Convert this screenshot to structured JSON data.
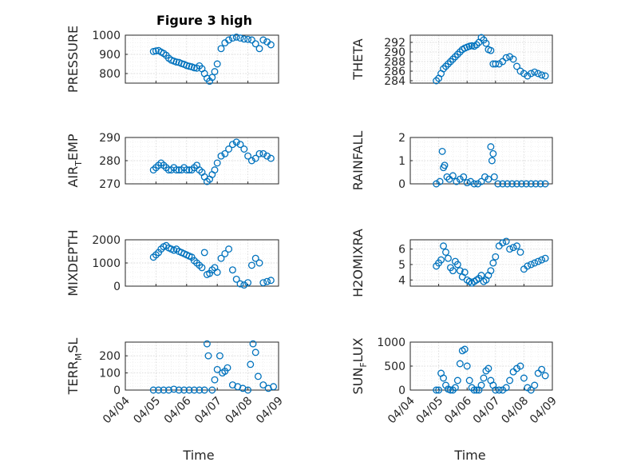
{
  "figure_title": "Figure 3 high",
  "xlabel": "Time",
  "x_ticks": [
    "04/04",
    "04/05",
    "04/06",
    "04/07",
    "04/08",
    "04/09"
  ],
  "marker_color": "#0072BD",
  "chart_data": [
    {
      "type": "scatter",
      "ylabel": "PRESSURE",
      "ylim": [
        750,
        1000
      ],
      "yticks": [
        "800",
        "900",
        "1000"
      ],
      "ytick_values": [
        800,
        900,
        1000
      ],
      "x": [
        "04/04 22:00",
        "04/05 00:00",
        "04/05 02:00",
        "04/05 04:00",
        "04/05 06:00",
        "04/05 08:00",
        "04/05 10:00",
        "04/05 12:00",
        "04/05 14:00",
        "04/05 16:00",
        "04/05 18:00",
        "04/05 20:00",
        "04/05 22:00",
        "04/06 00:00",
        "04/06 02:00",
        "04/06 04:00",
        "04/06 06:00",
        "04/06 08:00",
        "04/06 10:00",
        "04/06 12:00",
        "04/06 14:00",
        "04/06 16:00",
        "04/06 18:00",
        "04/06 20:00",
        "04/06 22:00",
        "04/07 00:00",
        "04/07 03:00",
        "04/07 06:00",
        "04/07 09:00",
        "04/07 12:00",
        "04/07 15:00",
        "04/07 18:00",
        "04/07 21:00",
        "04/08 00:00",
        "04/08 03:00",
        "04/08 06:00",
        "04/08 09:00",
        "04/08 12:00",
        "04/08 15:00",
        "04/08 18:00"
      ],
      "y": [
        915,
        918,
        920,
        912,
        905,
        895,
        880,
        870,
        865,
        860,
        858,
        852,
        848,
        842,
        838,
        835,
        830,
        828,
        840,
        825,
        800,
        775,
        760,
        780,
        810,
        850,
        930,
        960,
        975,
        985,
        990,
        985,
        980,
        978,
        975,
        955,
        930,
        975,
        965,
        950
      ]
    },
    {
      "type": "scatter",
      "ylabel": "THETA",
      "ylim": [
        283.5,
        293.5
      ],
      "yticks": [
        "284",
        "286",
        "288",
        "290",
        "292"
      ],
      "ytick_values": [
        284,
        286,
        288,
        290,
        292
      ],
      "x": [
        "04/04 22:00",
        "04/05 00:00",
        "04/05 02:00",
        "04/05 04:00",
        "04/05 06:00",
        "04/05 08:00",
        "04/05 10:00",
        "04/05 12:00",
        "04/05 14:00",
        "04/05 16:00",
        "04/05 18:00",
        "04/05 20:00",
        "04/05 22:00",
        "04/06 00:00",
        "04/06 02:00",
        "04/06 04:00",
        "04/06 06:00",
        "04/06 08:00",
        "04/06 10:00",
        "04/06 12:00",
        "04/06 14:00",
        "04/06 16:00",
        "04/06 18:00",
        "04/06 20:00",
        "04/06 22:00",
        "04/07 00:00",
        "04/07 03:00",
        "04/07 06:00",
        "04/07 09:00",
        "04/07 12:00",
        "04/07 15:00",
        "04/07 18:00",
        "04/07 21:00",
        "04/08 00:00",
        "04/08 03:00",
        "04/08 06:00",
        "04/08 09:00",
        "04/08 12:00",
        "04/08 15:00",
        "04/08 18:00"
      ],
      "y": [
        284,
        284.5,
        285.5,
        286.5,
        287.0,
        287.5,
        288.0,
        288.5,
        289.0,
        289.5,
        290.0,
        290.5,
        290.8,
        291.0,
        291.2,
        291.3,
        291.2,
        291.5,
        292.0,
        293.0,
        292.5,
        291.8,
        290.5,
        290.3,
        287.5,
        287.5,
        287.5,
        288.0,
        288.8,
        289.0,
        288.5,
        287.0,
        286.0,
        285.5,
        285.0,
        285.5,
        285.8,
        285.5,
        285.2,
        285.0
      ]
    },
    {
      "type": "scatter",
      "ylabel": "AIR_TEMP",
      "ylim": [
        270,
        290
      ],
      "yticks": [
        "270",
        "280",
        "290"
      ],
      "ytick_values": [
        270,
        280,
        290
      ],
      "x": [
        "04/04 22:00",
        "04/05 00:00",
        "04/05 02:00",
        "04/05 04:00",
        "04/05 06:00",
        "04/05 08:00",
        "04/05 10:00",
        "04/05 12:00",
        "04/05 14:00",
        "04/05 16:00",
        "04/05 18:00",
        "04/05 20:00",
        "04/05 22:00",
        "04/06 00:00",
        "04/06 02:00",
        "04/06 04:00",
        "04/06 06:00",
        "04/06 08:00",
        "04/06 10:00",
        "04/06 12:00",
        "04/06 14:00",
        "04/06 16:00",
        "04/06 18:00",
        "04/06 20:00",
        "04/06 22:00",
        "04/07 00:00",
        "04/07 03:00",
        "04/07 06:00",
        "04/07 09:00",
        "04/07 12:00",
        "04/07 15:00",
        "04/07 18:00",
        "04/07 21:00",
        "04/08 00:00",
        "04/08 03:00",
        "04/08 06:00",
        "04/08 09:00",
        "04/08 12:00",
        "04/08 15:00",
        "04/08 18:00"
      ],
      "y": [
        276,
        277,
        278,
        279,
        278,
        277,
        276,
        276,
        277,
        276,
        276,
        276,
        277,
        276,
        276,
        276,
        277,
        278,
        276,
        275,
        273,
        271,
        272,
        274,
        276,
        279,
        282,
        283,
        285,
        287,
        288,
        287,
        285,
        282,
        280,
        281,
        283,
        283,
        282,
        281
      ]
    },
    {
      "type": "scatter",
      "ylabel": "RAINFALL",
      "ylim": [
        0,
        2
      ],
      "yticks": [
        "0",
        "1",
        "2"
      ],
      "ytick_values": [
        0,
        1,
        2
      ],
      "x": [
        "04/04 22:00",
        "04/05 01:00",
        "04/05 03:00",
        "04/05 04:00",
        "04/05 05:00",
        "04/05 07:00",
        "04/05 09:00",
        "04/05 12:00",
        "04/05 15:00",
        "04/05 18:00",
        "04/05 21:00",
        "04/06 00:00",
        "04/06 03:00",
        "04/06 06:00",
        "04/06 09:00",
        "04/06 12:00",
        "04/06 15:00",
        "04/06 18:00",
        "04/06 20:00",
        "04/06 21:00",
        "04/06 22:00",
        "04/06 23:00",
        "04/07 02:00",
        "04/07 06:00",
        "04/07 10:00",
        "04/07 14:00",
        "04/07 18:00",
        "04/07 22:00",
        "04/08 02:00",
        "04/08 06:00",
        "04/08 10:00",
        "04/08 14:00",
        "04/08 18:00"
      ],
      "y": [
        0,
        0.1,
        1.4,
        0.7,
        0.8,
        0.3,
        0.2,
        0.35,
        0.1,
        0.2,
        0.3,
        0.05,
        0.1,
        0,
        0,
        0.1,
        0.3,
        0.2,
        1.6,
        1.0,
        1.3,
        0.3,
        0,
        0,
        0,
        0,
        0,
        0,
        0,
        0,
        0,
        0,
        0
      ]
    },
    {
      "type": "scatter",
      "ylabel": "MIXDEPTH",
      "ylim": [
        0,
        2000
      ],
      "yticks": [
        "0",
        "1000",
        "2000"
      ],
      "ytick_values": [
        0,
        1000,
        2000
      ],
      "x": [
        "04/04 22:00",
        "04/05 00:00",
        "04/05 02:00",
        "04/05 04:00",
        "04/05 06:00",
        "04/05 08:00",
        "04/05 10:00",
        "04/05 12:00",
        "04/05 14:00",
        "04/05 16:00",
        "04/05 18:00",
        "04/05 20:00",
        "04/05 22:00",
        "04/06 00:00",
        "04/06 02:00",
        "04/06 04:00",
        "04/06 06:00",
        "04/06 08:00",
        "04/06 10:00",
        "04/06 12:00",
        "04/06 14:00",
        "04/06 16:00",
        "04/06 18:00",
        "04/06 20:00",
        "04/06 22:00",
        "04/07 00:00",
        "04/07 03:00",
        "04/07 06:00",
        "04/07 09:00",
        "04/07 12:00",
        "04/07 15:00",
        "04/07 18:00",
        "04/07 21:00",
        "04/08 00:00",
        "04/08 03:00",
        "04/08 06:00",
        "04/08 09:00",
        "04/08 12:00",
        "04/08 15:00",
        "04/08 18:00"
      ],
      "y": [
        1250,
        1350,
        1450,
        1600,
        1700,
        1750,
        1650,
        1600,
        1550,
        1600,
        1500,
        1450,
        1400,
        1350,
        1300,
        1250,
        1100,
        1000,
        900,
        800,
        1450,
        500,
        550,
        700,
        800,
        600,
        1200,
        1400,
        1600,
        700,
        300,
        100,
        50,
        150,
        900,
        1200,
        1000,
        150,
        200,
        250
      ]
    },
    {
      "type": "scatter",
      "ylabel": "H2OMIXRA",
      "ylim": [
        3.6,
        6.6
      ],
      "yticks": [
        "4",
        "5",
        "6"
      ],
      "ytick_values": [
        4,
        5,
        6
      ],
      "x": [
        "04/04 22:00",
        "04/05 00:00",
        "04/05 02:00",
        "04/05 04:00",
        "04/05 06:00",
        "04/05 08:00",
        "04/05 10:00",
        "04/05 12:00",
        "04/05 14:00",
        "04/05 16:00",
        "04/05 18:00",
        "04/05 20:00",
        "04/05 22:00",
        "04/06 00:00",
        "04/06 02:00",
        "04/06 04:00",
        "04/06 06:00",
        "04/06 08:00",
        "04/06 10:00",
        "04/06 12:00",
        "04/06 14:00",
        "04/06 16:00",
        "04/06 18:00",
        "04/06 20:00",
        "04/06 22:00",
        "04/07 00:00",
        "04/07 03:00",
        "04/07 06:00",
        "04/07 09:00",
        "04/07 12:00",
        "04/07 15:00",
        "04/07 18:00",
        "04/07 21:00",
        "04/08 00:00",
        "04/08 03:00",
        "04/08 06:00",
        "04/08 09:00",
        "04/08 12:00",
        "04/08 15:00",
        "04/08 18:00"
      ],
      "y": [
        4.9,
        5.1,
        5.3,
        6.2,
        5.8,
        5.4,
        4.8,
        4.6,
        5.2,
        5.0,
        4.6,
        4.2,
        4.5,
        4.0,
        3.9,
        3.8,
        3.9,
        4.0,
        4.1,
        4.3,
        3.9,
        4.0,
        4.3,
        4.6,
        5.1,
        5.5,
        6.2,
        6.4,
        6.5,
        6.0,
        6.1,
        6.2,
        5.8,
        4.7,
        4.9,
        5.0,
        5.1,
        5.2,
        5.3,
        5.4
      ]
    },
    {
      "type": "scatter",
      "ylabel": "TERR_MSL",
      "ylim": [
        0,
        280
      ],
      "yticks": [
        "0",
        "100",
        "200"
      ],
      "ytick_values": [
        0,
        100,
        200
      ],
      "x": [
        "04/04 22:00",
        "04/05 02:00",
        "04/05 06:00",
        "04/05 10:00",
        "04/05 14:00",
        "04/05 18:00",
        "04/05 22:00",
        "04/06 02:00",
        "04/06 06:00",
        "04/06 10:00",
        "04/06 14:00",
        "04/06 16:00",
        "04/06 17:00",
        "04/06 20:00",
        "04/06 22:00",
        "04/07 00:00",
        "04/07 02:00",
        "04/07 04:00",
        "04/07 06:00",
        "04/07 08:00",
        "04/07 12:00",
        "04/07 16:00",
        "04/07 20:00",
        "04/08 00:00",
        "04/08 02:00",
        "04/08 04:00",
        "04/08 06:00",
        "04/08 08:00",
        "04/08 12:00",
        "04/08 16:00",
        "04/08 20:00"
      ],
      "y": [
        0,
        0,
        0,
        0,
        5,
        0,
        0,
        0,
        0,
        0,
        0,
        270,
        200,
        0,
        60,
        120,
        200,
        100,
        110,
        130,
        30,
        20,
        10,
        0,
        150,
        270,
        220,
        80,
        30,
        10,
        20
      ]
    },
    {
      "type": "scatter",
      "ylabel": "SUN_FLUX",
      "ylim": [
        0,
        1000
      ],
      "yticks": [
        "0",
        "500",
        "1000"
      ],
      "ytick_values": [
        0,
        500,
        1000
      ],
      "x": [
        "04/04 22:00",
        "04/05 00:00",
        "04/05 02:00",
        "04/05 04:00",
        "04/05 06:00",
        "04/05 08:00",
        "04/05 10:00",
        "04/05 12:00",
        "04/05 14:00",
        "04/05 16:00",
        "04/05 18:00",
        "04/05 20:00",
        "04/05 22:00",
        "04/06 00:00",
        "04/06 02:00",
        "04/06 04:00",
        "04/06 06:00",
        "04/06 08:00",
        "04/06 10:00",
        "04/06 12:00",
        "04/06 14:00",
        "04/06 16:00",
        "04/06 18:00",
        "04/06 20:00",
        "04/06 22:00",
        "04/07 00:00",
        "04/07 03:00",
        "04/07 06:00",
        "04/07 09:00",
        "04/07 12:00",
        "04/07 15:00",
        "04/07 18:00",
        "04/07 21:00",
        "04/08 00:00",
        "04/08 03:00",
        "04/08 06:00",
        "04/08 09:00",
        "04/08 12:00",
        "04/08 15:00",
        "04/08 18:00"
      ],
      "y": [
        0,
        0,
        350,
        250,
        100,
        20,
        0,
        0,
        50,
        200,
        550,
        820,
        850,
        500,
        200,
        50,
        0,
        0,
        0,
        100,
        250,
        400,
        450,
        200,
        100,
        0,
        0,
        0,
        50,
        200,
        380,
        450,
        500,
        250,
        50,
        0,
        100,
        350,
        430,
        300
      ]
    }
  ]
}
